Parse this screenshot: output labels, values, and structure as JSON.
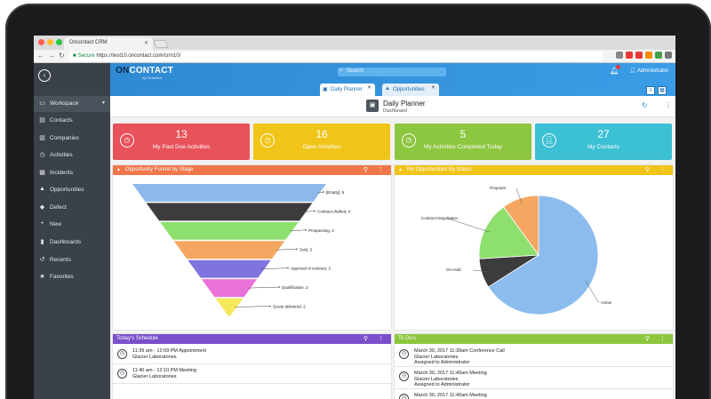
{
  "browser": {
    "tab_title": "Oncontact CRM",
    "secure_label": "Secure",
    "url": "https://test10.oncontact.com/crm10/"
  },
  "header": {
    "logo_on": "ON",
    "logo_contact": "CONTACT",
    "logo_sub": "by ProActive",
    "search_placeholder": "Search",
    "user_name": "Administrator",
    "tabs": [
      {
        "label": "Daily Planner",
        "active": true
      },
      {
        "label": "Opportunities",
        "active": false
      }
    ]
  },
  "sidebar": {
    "items": [
      {
        "label": "Workspace",
        "icon": "monitor-icon"
      },
      {
        "label": "Contacts",
        "icon": "contact-card-icon"
      },
      {
        "label": "Companies",
        "icon": "building-icon"
      },
      {
        "label": "Activities",
        "icon": "clock-icon"
      },
      {
        "label": "Incidents",
        "icon": "incident-icon"
      },
      {
        "label": "Opportunities",
        "icon": "thumbs-up-icon"
      },
      {
        "label": "Defect",
        "icon": "shield-icon"
      },
      {
        "label": "New",
        "icon": "plus-icon"
      },
      {
        "label": "Dashboards",
        "icon": "chart-icon"
      },
      {
        "label": "Recents",
        "icon": "history-icon"
      },
      {
        "label": "Favorites",
        "icon": "star-icon"
      }
    ]
  },
  "page": {
    "title": "Daily Planner",
    "subtitle": "Dashboard"
  },
  "kpis": [
    {
      "value": "13",
      "label": "My Past Due Activities",
      "color": "#e8525a",
      "icon": "clock-icon"
    },
    {
      "value": "16",
      "label": "Open Activities",
      "color": "#f0c419",
      "icon": "clock-icon"
    },
    {
      "value": "5",
      "label": "My Activities Completed Today",
      "color": "#8dc63f",
      "icon": "clock-icon"
    },
    {
      "value": "27",
      "label": "My Contacts",
      "color": "#3cc0d3",
      "icon": "person-icon"
    }
  ],
  "panels": {
    "funnel_title": "Opportunity Funnel by Stage",
    "funnel_color": "#f0774a",
    "status_title": "My Opportunities By Status",
    "status_color": "#f0c419",
    "schedule_title": "Today's Schedule",
    "schedule_color": "#7a4fc9",
    "todo_title": "To Do's",
    "todo_color": "#8dc63f"
  },
  "chart_data": [
    {
      "type": "funnel",
      "categories": [
        "[Empty], 5",
        "Contract drafted, 4",
        "Prospecting, 3",
        "Sold, 3",
        "Approval of contract, 2",
        "Qualification, 2",
        "Quote delivered, 2"
      ],
      "values": [
        5,
        4,
        3,
        3,
        2,
        2,
        2
      ],
      "colors": [
        "#8cb8ea",
        "#3c3c3c",
        "#8ee06e",
        "#f5a762",
        "#7f73e0",
        "#e872d8",
        "#f5e85a"
      ]
    },
    {
      "type": "pie",
      "categories": [
        "Active",
        "On Hold",
        "Contract Negotiation",
        "Proposal"
      ],
      "values": [
        66,
        8,
        16,
        10
      ],
      "colors": [
        "#8cbcee",
        "#3c3c3c",
        "#8ee06e",
        "#f5a762"
      ]
    }
  ],
  "schedule": [
    {
      "time": "11:39 am - 12:09 PM Appointment",
      "company": "Glacier Laboratories"
    },
    {
      "time": "11:40 am - 12:10 PM Meeting",
      "company": "Glacier Laboratories"
    }
  ],
  "todos": [
    {
      "time": "March 30, 2017 11:39am Conference Call",
      "company": "Glacier Laboratories",
      "assigned": "Assigned to Administrator"
    },
    {
      "time": "March 30, 2017 11:40am Meeting",
      "company": "Glacier Laboratories",
      "assigned": "Assigned to Administrator"
    },
    {
      "time": "March 30, 2017 11:40am Meeting",
      "company": "",
      "assigned": ""
    }
  ]
}
